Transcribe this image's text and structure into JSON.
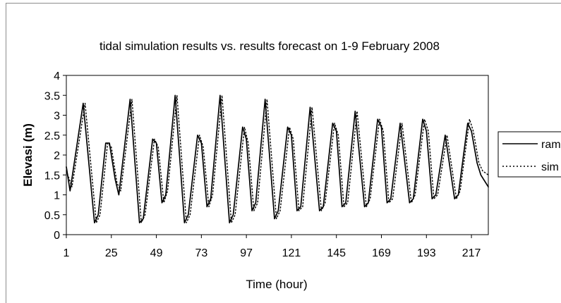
{
  "chart_data": {
    "type": "line",
    "title": "tidal simulation results vs. results forecast on 1-9 February 2008",
    "xlabel": "Time (hour)",
    "ylabel": "Elevasi (m)",
    "xlim": [
      1,
      226
    ],
    "ylim": [
      0,
      4
    ],
    "xticks": [
      "1",
      "25",
      "49",
      "73",
      "97",
      "121",
      "145",
      "169",
      "193",
      "217"
    ],
    "yticks": [
      "0",
      "0.5",
      "1",
      "1.5",
      "2",
      "2.5",
      "3",
      "3.5",
      "4"
    ],
    "grid": false,
    "legend_position": "right",
    "series": [
      {
        "name": "ram",
        "style": "solid",
        "color": "#000000",
        "x": [
          1,
          3,
          10,
          16,
          18,
          22,
          24,
          27,
          29,
          35,
          40,
          42,
          47,
          49,
          52,
          54,
          59,
          64,
          66,
          71,
          73,
          76,
          78,
          83,
          88,
          90,
          95,
          97,
          100,
          102,
          107,
          112,
          114,
          119,
          121,
          124,
          126,
          131,
          136,
          138,
          143,
          145,
          148,
          150,
          155,
          160,
          162,
          167,
          169,
          172,
          174,
          179,
          184,
          186,
          191,
          193,
          196,
          198,
          203,
          208,
          210,
          215,
          217,
          220,
          222,
          226
        ],
        "y": [
          1.7,
          1.1,
          3.3,
          0.3,
          0.5,
          2.3,
          2.3,
          1.4,
          1.0,
          3.4,
          0.3,
          0.4,
          2.4,
          2.3,
          0.8,
          1.0,
          3.5,
          0.3,
          0.5,
          2.5,
          2.3,
          0.7,
          0.9,
          3.5,
          0.3,
          0.5,
          2.7,
          2.4,
          0.6,
          0.8,
          3.4,
          0.4,
          0.6,
          2.7,
          2.5,
          0.6,
          0.7,
          3.2,
          0.6,
          0.7,
          2.8,
          2.6,
          0.7,
          0.8,
          3.1,
          0.7,
          0.8,
          2.9,
          2.7,
          0.8,
          0.9,
          2.8,
          0.8,
          0.9,
          2.9,
          2.6,
          0.9,
          1.0,
          2.5,
          0.9,
          1.0,
          2.8,
          2.6,
          1.8,
          1.5,
          1.2
        ]
      },
      {
        "name": "sim",
        "style": "dotted",
        "color": "#000000",
        "x": [
          1,
          4,
          11,
          17,
          19,
          23,
          25,
          28,
          30,
          36,
          41,
          43,
          48,
          50,
          53,
          55,
          60,
          65,
          67,
          72,
          74,
          77,
          79,
          84,
          89,
          91,
          96,
          98,
          101,
          103,
          108,
          113,
          115,
          120,
          122,
          125,
          127,
          132,
          137,
          139,
          144,
          146,
          149,
          151,
          156,
          161,
          163,
          168,
          170,
          173,
          175,
          180,
          185,
          187,
          192,
          194,
          197,
          199,
          204,
          209,
          211,
          216,
          218,
          221,
          223,
          226
        ],
        "y": [
          1.6,
          1.2,
          3.3,
          0.3,
          0.5,
          2.3,
          2.2,
          1.3,
          1.1,
          3.4,
          0.3,
          0.5,
          2.4,
          2.2,
          0.8,
          1.1,
          3.5,
          0.3,
          0.5,
          2.5,
          2.2,
          0.7,
          1.0,
          3.5,
          0.3,
          0.5,
          2.7,
          2.3,
          0.6,
          0.8,
          3.4,
          0.4,
          0.6,
          2.7,
          2.4,
          0.6,
          0.7,
          3.2,
          0.6,
          0.8,
          2.8,
          2.5,
          0.7,
          0.8,
          3.1,
          0.7,
          0.9,
          2.9,
          2.6,
          0.8,
          0.9,
          2.8,
          0.8,
          1.0,
          2.9,
          2.6,
          0.9,
          1.0,
          2.5,
          0.9,
          1.1,
          2.9,
          2.6,
          1.8,
          1.6,
          1.5
        ]
      }
    ]
  }
}
